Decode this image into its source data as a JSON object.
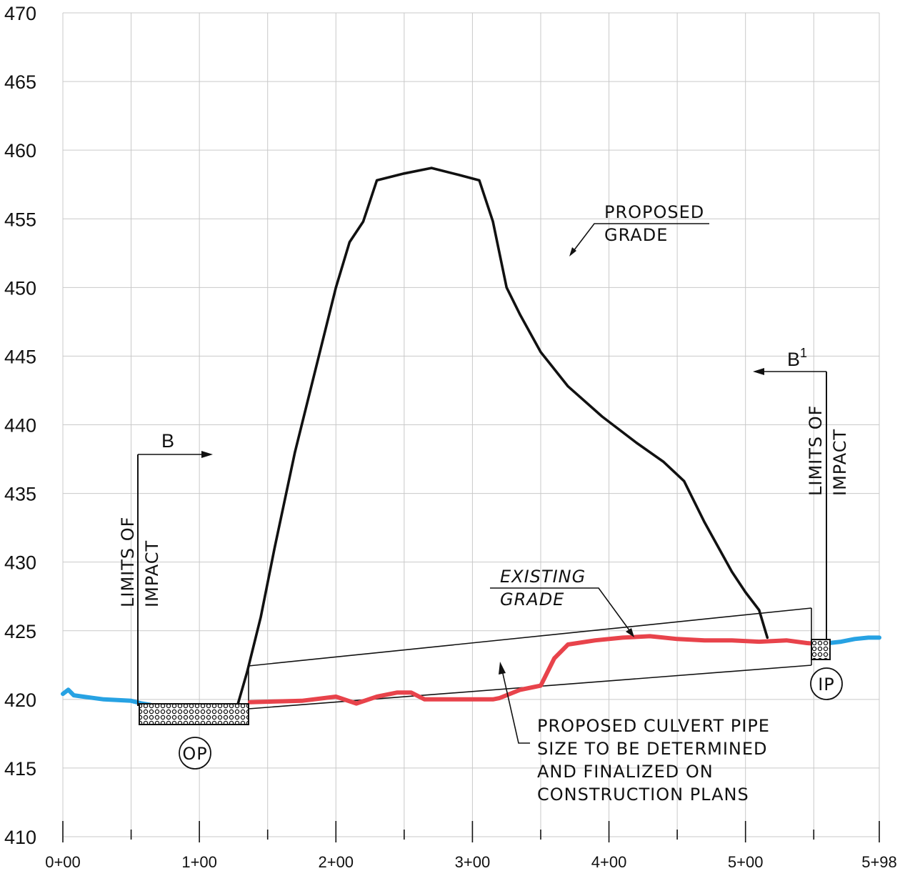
{
  "chart_data": {
    "type": "line",
    "y_ticks": [
      410,
      415,
      420,
      425,
      430,
      435,
      440,
      445,
      450,
      455,
      460,
      465,
      470
    ],
    "x_ticks": [
      {
        "station": 0,
        "label": "0+00"
      },
      {
        "station": 100,
        "label": "1+00"
      },
      {
        "station": 200,
        "label": "2+00"
      },
      {
        "station": 300,
        "label": "3+00"
      },
      {
        "station": 400,
        "label": "4+00"
      },
      {
        "station": 500,
        "label": "5+00"
      },
      {
        "station": 598,
        "label": "5+98"
      }
    ],
    "xlim": [
      0,
      598
    ],
    "ylim": [
      410,
      470
    ],
    "grid": true,
    "series": [
      {
        "id": "proposed",
        "color": "#111111",
        "points": [
          [
            128,
            419.6
          ],
          [
            135,
            422
          ],
          [
            145,
            426
          ],
          [
            155,
            431
          ],
          [
            170,
            438
          ],
          [
            185,
            444
          ],
          [
            200,
            450
          ],
          [
            210,
            453.3
          ],
          [
            220,
            454.8
          ],
          [
            230,
            457.8
          ],
          [
            250,
            458.3
          ],
          [
            270,
            458.7
          ],
          [
            290,
            458.2
          ],
          [
            305,
            457.8
          ],
          [
            315,
            454.8
          ],
          [
            325,
            450
          ],
          [
            335,
            448
          ],
          [
            350,
            445.3
          ],
          [
            370,
            442.8
          ],
          [
            395,
            440.6
          ],
          [
            420,
            438.7
          ],
          [
            440,
            437.3
          ],
          [
            455,
            435.9
          ],
          [
            470,
            432.9
          ],
          [
            490,
            429.3
          ],
          [
            500,
            427.8
          ],
          [
            510,
            426.5
          ],
          [
            516,
            424.5
          ]
        ]
      },
      {
        "id": "existing",
        "color": "#e8434b",
        "points": [
          [
            137,
            419.8
          ],
          [
            175,
            419.9
          ],
          [
            200,
            420.2
          ],
          [
            215,
            419.7
          ],
          [
            230,
            420.2
          ],
          [
            245,
            420.5
          ],
          [
            255,
            420.5
          ],
          [
            265,
            420
          ],
          [
            290,
            420
          ],
          [
            315,
            420
          ],
          [
            320,
            420.1
          ],
          [
            335,
            420.7
          ],
          [
            345,
            420.9
          ],
          [
            350,
            421
          ],
          [
            360,
            423
          ],
          [
            370,
            424
          ],
          [
            390,
            424.3
          ],
          [
            410,
            424.5
          ],
          [
            430,
            424.6
          ],
          [
            450,
            424.4
          ],
          [
            470,
            424.3
          ],
          [
            490,
            424.3
          ],
          [
            510,
            424.2
          ],
          [
            530,
            424.3
          ],
          [
            545,
            424.1
          ],
          [
            558,
            424
          ]
        ]
      },
      {
        "id": "existing-outside",
        "color": "#27a2e3",
        "points": [
          [
            0,
            420.4
          ],
          [
            4,
            420.7
          ],
          [
            8,
            420.3
          ],
          [
            15,
            420.2
          ],
          [
            30,
            420
          ],
          [
            50,
            419.9
          ],
          [
            58,
            419.7
          ],
          [
            64,
            419.6
          ],
          [
            66,
            419.5
          ]
        ]
      },
      {
        "id": "existing-outside-right",
        "color": "#27a2e3",
        "points": [
          [
            561,
            424.1
          ],
          [
            570,
            424.2
          ],
          [
            580,
            424.4
          ],
          [
            590,
            424.5
          ],
          [
            598,
            424.5
          ]
        ]
      }
    ]
  },
  "annotations": {
    "proposed_grade_line1": "PROPOSED",
    "proposed_grade_line2": "GRADE",
    "existing_grade_line1": "EXISTING",
    "existing_grade_line2": "GRADE",
    "culvert_line1": "PROPOSED CULVERT PIPE",
    "culvert_line2": "SIZE TO BE DETERMINED",
    "culvert_line3": "AND FINALIZED ON",
    "culvert_line4": "CONSTRUCTION PLANS",
    "limits_line1": "LIMITS OF",
    "limits_line2": "IMPACT",
    "section_left": "B",
    "section_right": "B",
    "section_right_sup": "1",
    "outlet": "OP",
    "inlet": "IP"
  }
}
